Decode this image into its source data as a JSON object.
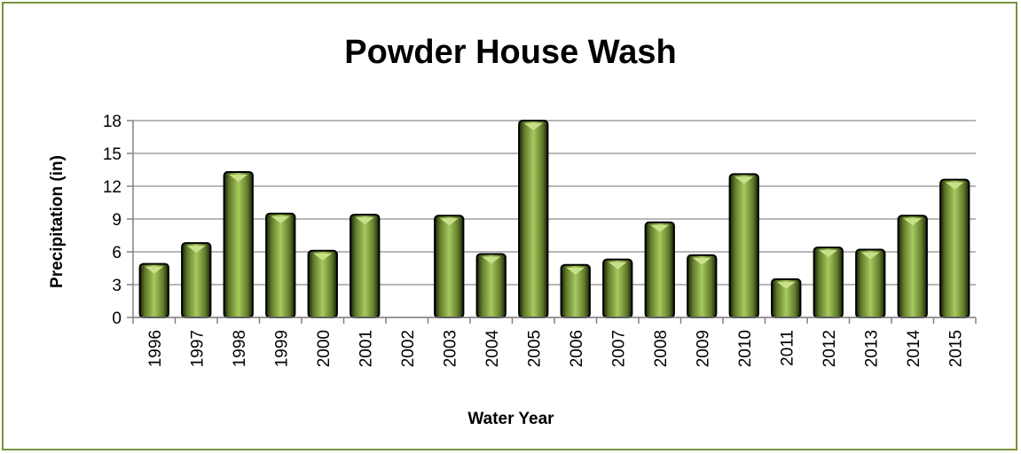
{
  "chart_data": {
    "type": "bar",
    "title": "Powder House Wash",
    "xlabel": "Water Year",
    "ylabel": "Precipitation (in)",
    "ylim": [
      0,
      18
    ],
    "yticks": [
      "0",
      "3",
      "6",
      "9",
      "12",
      "15",
      "18"
    ],
    "grid": true,
    "legend": "none",
    "categories": [
      "1996",
      "1997",
      "1998",
      "1999",
      "2000",
      "2001",
      "2002",
      "2003",
      "2004",
      "2005",
      "2006",
      "2007",
      "2008",
      "2009",
      "2010",
      "2011",
      "2012",
      "2013",
      "2014",
      "2015"
    ],
    "values": [
      4.9,
      6.8,
      13.3,
      9.5,
      6.1,
      9.4,
      0,
      9.3,
      5.8,
      18.0,
      4.8,
      5.3,
      8.7,
      5.7,
      13.1,
      3.5,
      6.4,
      6.2,
      9.3,
      12.6
    ],
    "bar_color": "#9BBB59",
    "bar_edge_color": "#000000",
    "frame_color": "#77933C"
  }
}
